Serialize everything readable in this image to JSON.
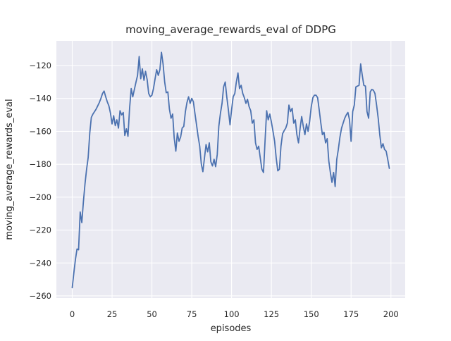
{
  "figure": {
    "background_color": "#ffffff"
  },
  "chart_data": {
    "type": "line",
    "title": "moving_average_rewards_eval of DDPG",
    "xlabel": "episodes",
    "ylabel": "moving_average_rewards_eval",
    "legend": null,
    "grid": true,
    "x_start": 0,
    "x_step": 1,
    "values": [
      -255,
      -246,
      -238,
      -231.5,
      -232,
      -209,
      -215.5,
      -203,
      -192,
      -183,
      -176,
      -161,
      -151.5,
      -149.5,
      -148,
      -146.5,
      -144.5,
      -142.5,
      -140,
      -137,
      -135.5,
      -139,
      -142,
      -144.5,
      -149,
      -155.5,
      -150.5,
      -156.5,
      -153,
      -158,
      -147.5,
      -150,
      -148.5,
      -162.5,
      -158.5,
      -163,
      -146,
      -134,
      -139,
      -134.5,
      -130,
      -126,
      -114.5,
      -128,
      -122,
      -129,
      -123.5,
      -128.5,
      -137,
      -139,
      -138,
      -134,
      -128,
      -122.5,
      -126,
      -122.5,
      -112,
      -119,
      -130,
      -136.5,
      -136,
      -146.5,
      -152,
      -149.5,
      -164,
      -172,
      -161,
      -166,
      -163.5,
      -158,
      -157,
      -148,
      -142.5,
      -139,
      -143,
      -140,
      -142,
      -149,
      -156,
      -163,
      -169,
      -180,
      -184.5,
      -176,
      -168,
      -172.5,
      -167,
      -178.5,
      -181,
      -177,
      -181.5,
      -174,
      -157,
      -149,
      -143,
      -133,
      -130,
      -139,
      -147,
      -156,
      -147,
      -139,
      -137,
      -130,
      -124.5,
      -134,
      -132,
      -137,
      -139.5,
      -143,
      -140.5,
      -145,
      -147.5,
      -155,
      -153,
      -167,
      -171,
      -169,
      -176,
      -183,
      -185,
      -166,
      -147.5,
      -153,
      -149.5,
      -154.5,
      -160,
      -166,
      -176,
      -184,
      -183,
      -169,
      -161.5,
      -159.5,
      -158,
      -155,
      -144,
      -148,
      -146,
      -155,
      -153,
      -162,
      -167,
      -158,
      -151,
      -157,
      -162,
      -155.5,
      -160,
      -154,
      -145,
      -139.5,
      -138,
      -138,
      -139.5,
      -147,
      -155,
      -162,
      -160.5,
      -167,
      -164.5,
      -178,
      -185,
      -191,
      -185,
      -193.5,
      -177,
      -171,
      -163.5,
      -158,
      -155,
      -152,
      -150,
      -148.5,
      -153,
      -166,
      -148,
      -144,
      -133,
      -132.5,
      -132,
      -119,
      -126,
      -132,
      -132.5,
      -148,
      -152,
      -136,
      -134.5,
      -135,
      -137,
      -144,
      -152,
      -162,
      -170,
      -167.5,
      -171,
      -172,
      -177,
      -182.5
    ],
    "xlim": [
      -9.95,
      208.95
    ],
    "ylim": [
      -261.3,
      -105.0
    ],
    "xticks": {
      "values": [
        0,
        25,
        50,
        75,
        100,
        125,
        150,
        175,
        200
      ],
      "labels": [
        "0",
        "25",
        "50",
        "75",
        "100",
        "125",
        "150",
        "175",
        "200"
      ]
    },
    "yticks": {
      "values": [
        -120,
        -140,
        -160,
        -180,
        -200,
        -220,
        -240,
        -260
      ],
      "labels": [
        "−120",
        "−140",
        "−160",
        "−180",
        "−200",
        "−220",
        "−240",
        "−260"
      ]
    },
    "style": {
      "line_color": "#4c72b0",
      "line_width": 1.8,
      "plot_background": "#eaeaf2",
      "grid_color": "#ffffff",
      "text_color": "#262626"
    }
  }
}
